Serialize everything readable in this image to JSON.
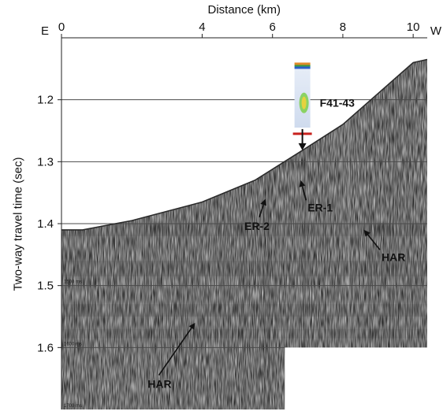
{
  "chart_data": {
    "type": "seismic_section",
    "title": "Distance (km)",
    "xlabel": "Distance (km)",
    "ylabel": "Two-way travel time (sec)",
    "x_left_label": "E",
    "x_right_label": "W",
    "x_ticks": [
      0,
      4,
      6,
      8,
      10
    ],
    "x_tick_labels": [
      "0",
      "4",
      "6",
      "8",
      "10"
    ],
    "x_axis_range": [
      0,
      10.4
    ],
    "y_ticks": [
      1.2,
      1.3,
      1.4,
      1.5,
      1.6
    ],
    "y_tick_labels": [
      "1.2",
      "1.3",
      "1.4",
      "1.5",
      "1.6"
    ],
    "y_axis_range": [
      1.1,
      1.7
    ],
    "y_inverted": true,
    "grid": "horizontal",
    "inset_time_labels": [
      "1500 ms",
      "1600 ms",
      "1700 ms"
    ],
    "seafloor_profile": [
      {
        "x": 0.0,
        "y": 1.41
      },
      {
        "x": 0.6,
        "y": 1.41
      },
      {
        "x": 2.0,
        "y": 1.395
      },
      {
        "x": 4.0,
        "y": 1.365
      },
      {
        "x": 5.5,
        "y": 1.33
      },
      {
        "x": 6.9,
        "y": 1.28
      },
      {
        "x": 8.0,
        "y": 1.24
      },
      {
        "x": 9.0,
        "y": 1.19
      },
      {
        "x": 10.0,
        "y": 1.14
      },
      {
        "x": 10.4,
        "y": 1.135
      }
    ],
    "well": {
      "label": "F41-43",
      "x": 6.85,
      "y_top": 1.14,
      "y_bottom": 1.245,
      "marker_y": 1.255
    },
    "annotations": [
      {
        "text": "ER-1",
        "x": 7.0,
        "y": 1.375,
        "point_x": 6.8,
        "point_y": 1.33
      },
      {
        "text": "ER-2",
        "x": 5.2,
        "y": 1.405,
        "point_x": 5.8,
        "point_y": 1.36
      },
      {
        "text": "HAR",
        "x": 9.1,
        "y": 1.455,
        "point_x": 8.6,
        "point_y": 1.41
      },
      {
        "text": "HAR",
        "x": 2.45,
        "y": 1.66,
        "point_x": 3.8,
        "point_y": 1.56
      }
    ],
    "blank_region": {
      "x0": 6.35,
      "y0": 1.6,
      "x1": 10.4,
      "y1": 1.7
    }
  }
}
